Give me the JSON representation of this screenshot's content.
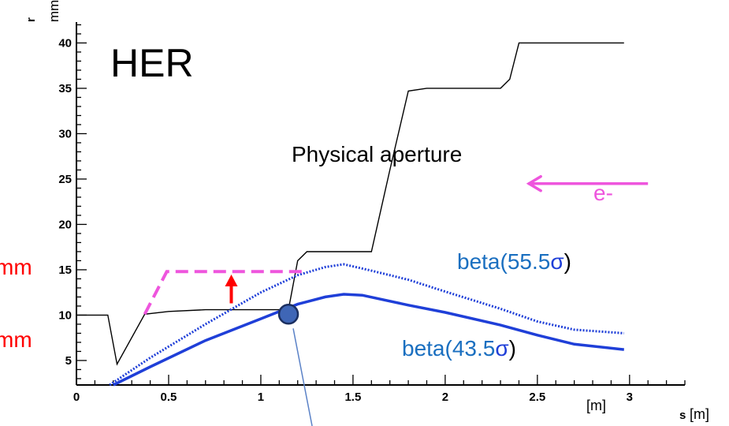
{
  "chart_data": {
    "type": "line",
    "title": "HER",
    "xlabel": "s",
    "xunit": "[m]",
    "xunit_secondary": "[m]",
    "ylabel": "r",
    "yunit": "mm",
    "xlim": [
      0,
      3.3
    ],
    "ylim": [
      2.3,
      42.3
    ],
    "x_ticks": [
      0,
      0.5,
      1,
      1.5,
      2,
      2.5,
      3
    ],
    "x_tick_labels": [
      "0",
      "0.5",
      "1",
      "1.5",
      "2",
      "2.5",
      "3"
    ],
    "y_ticks": [
      5,
      10,
      15,
      20,
      25,
      30,
      35,
      40
    ],
    "y_tick_labels": [
      "5",
      "10",
      "15",
      "20",
      "25",
      "30",
      "35",
      "40"
    ],
    "grid": false,
    "series": [
      {
        "name": "Physical aperture",
        "color": "#000000",
        "style": "solid",
        "x": [
          0.0,
          0.17,
          0.22,
          0.37,
          0.5,
          0.7,
          1.0,
          1.15,
          1.2,
          1.25,
          1.6,
          1.7,
          1.8,
          1.9,
          2.3,
          2.35,
          2.4,
          2.97
        ],
        "y": [
          10.0,
          10.0,
          4.6,
          10.1,
          10.4,
          10.6,
          10.6,
          10.6,
          16.0,
          17.0,
          17.0,
          26.0,
          34.7,
          35.0,
          35.0,
          36.0,
          40.0,
          40.0
        ]
      },
      {
        "name": "beta(55.5σ)",
        "color": "#1f3fd8",
        "style": "dotted",
        "x": [
          0.18,
          0.4,
          0.7,
          1.0,
          1.2,
          1.35,
          1.45,
          1.6,
          1.8,
          2.0,
          2.3,
          2.5,
          2.7,
          2.97
        ],
        "y": [
          2.3,
          5.3,
          9.0,
          12.5,
          14.4,
          15.3,
          15.6,
          14.9,
          13.9,
          12.6,
          10.7,
          9.3,
          8.4,
          8.0
        ]
      },
      {
        "name": "beta(43.5σ)",
        "color": "#1f3fd8",
        "style": "solid",
        "x": [
          0.2,
          0.4,
          0.7,
          1.0,
          1.2,
          1.35,
          1.45,
          1.55,
          1.8,
          2.0,
          2.3,
          2.5,
          2.7,
          2.97
        ],
        "y": [
          2.3,
          4.3,
          7.2,
          9.6,
          11.2,
          12.0,
          12.3,
          12.2,
          11.1,
          10.3,
          8.9,
          7.8,
          6.8,
          6.2
        ]
      }
    ],
    "proposed_aperture": {
      "color": "#ee55dd",
      "style": "dashed",
      "x": [
        0.37,
        0.49,
        1.25
      ],
      "y": [
        10.1,
        14.8,
        14.8
      ]
    },
    "annotations": {
      "physical_aperture": "Physical aperture",
      "beam_label": "e-",
      "beta_outer_label_prefix": "beta(55.5",
      "beta_inner_label_prefix": "beta(43.5",
      "sigma": "σ",
      "close_paren": ")",
      "left_label_top": "mm",
      "left_label_bottom": "mm",
      "beam_arrow_x": [
        3.1,
        2.45
      ],
      "beam_arrow_y": 24.5,
      "raise_arrow_x": 0.84,
      "raise_arrow_y": [
        11.3,
        14.3
      ],
      "marker_x": 1.15,
      "marker_y": 10.1
    },
    "colors": {
      "aperture": "#000000",
      "beta": "#1f3fd8",
      "label_blue": "#1a6fc0",
      "label_sigma": "#1f3fd8",
      "magenta": "#ee55dd",
      "red": "#ff0000",
      "marker_fill": "#3f66b6",
      "marker_edge": "#1b2f60",
      "pointer": "#5b82c7"
    }
  }
}
